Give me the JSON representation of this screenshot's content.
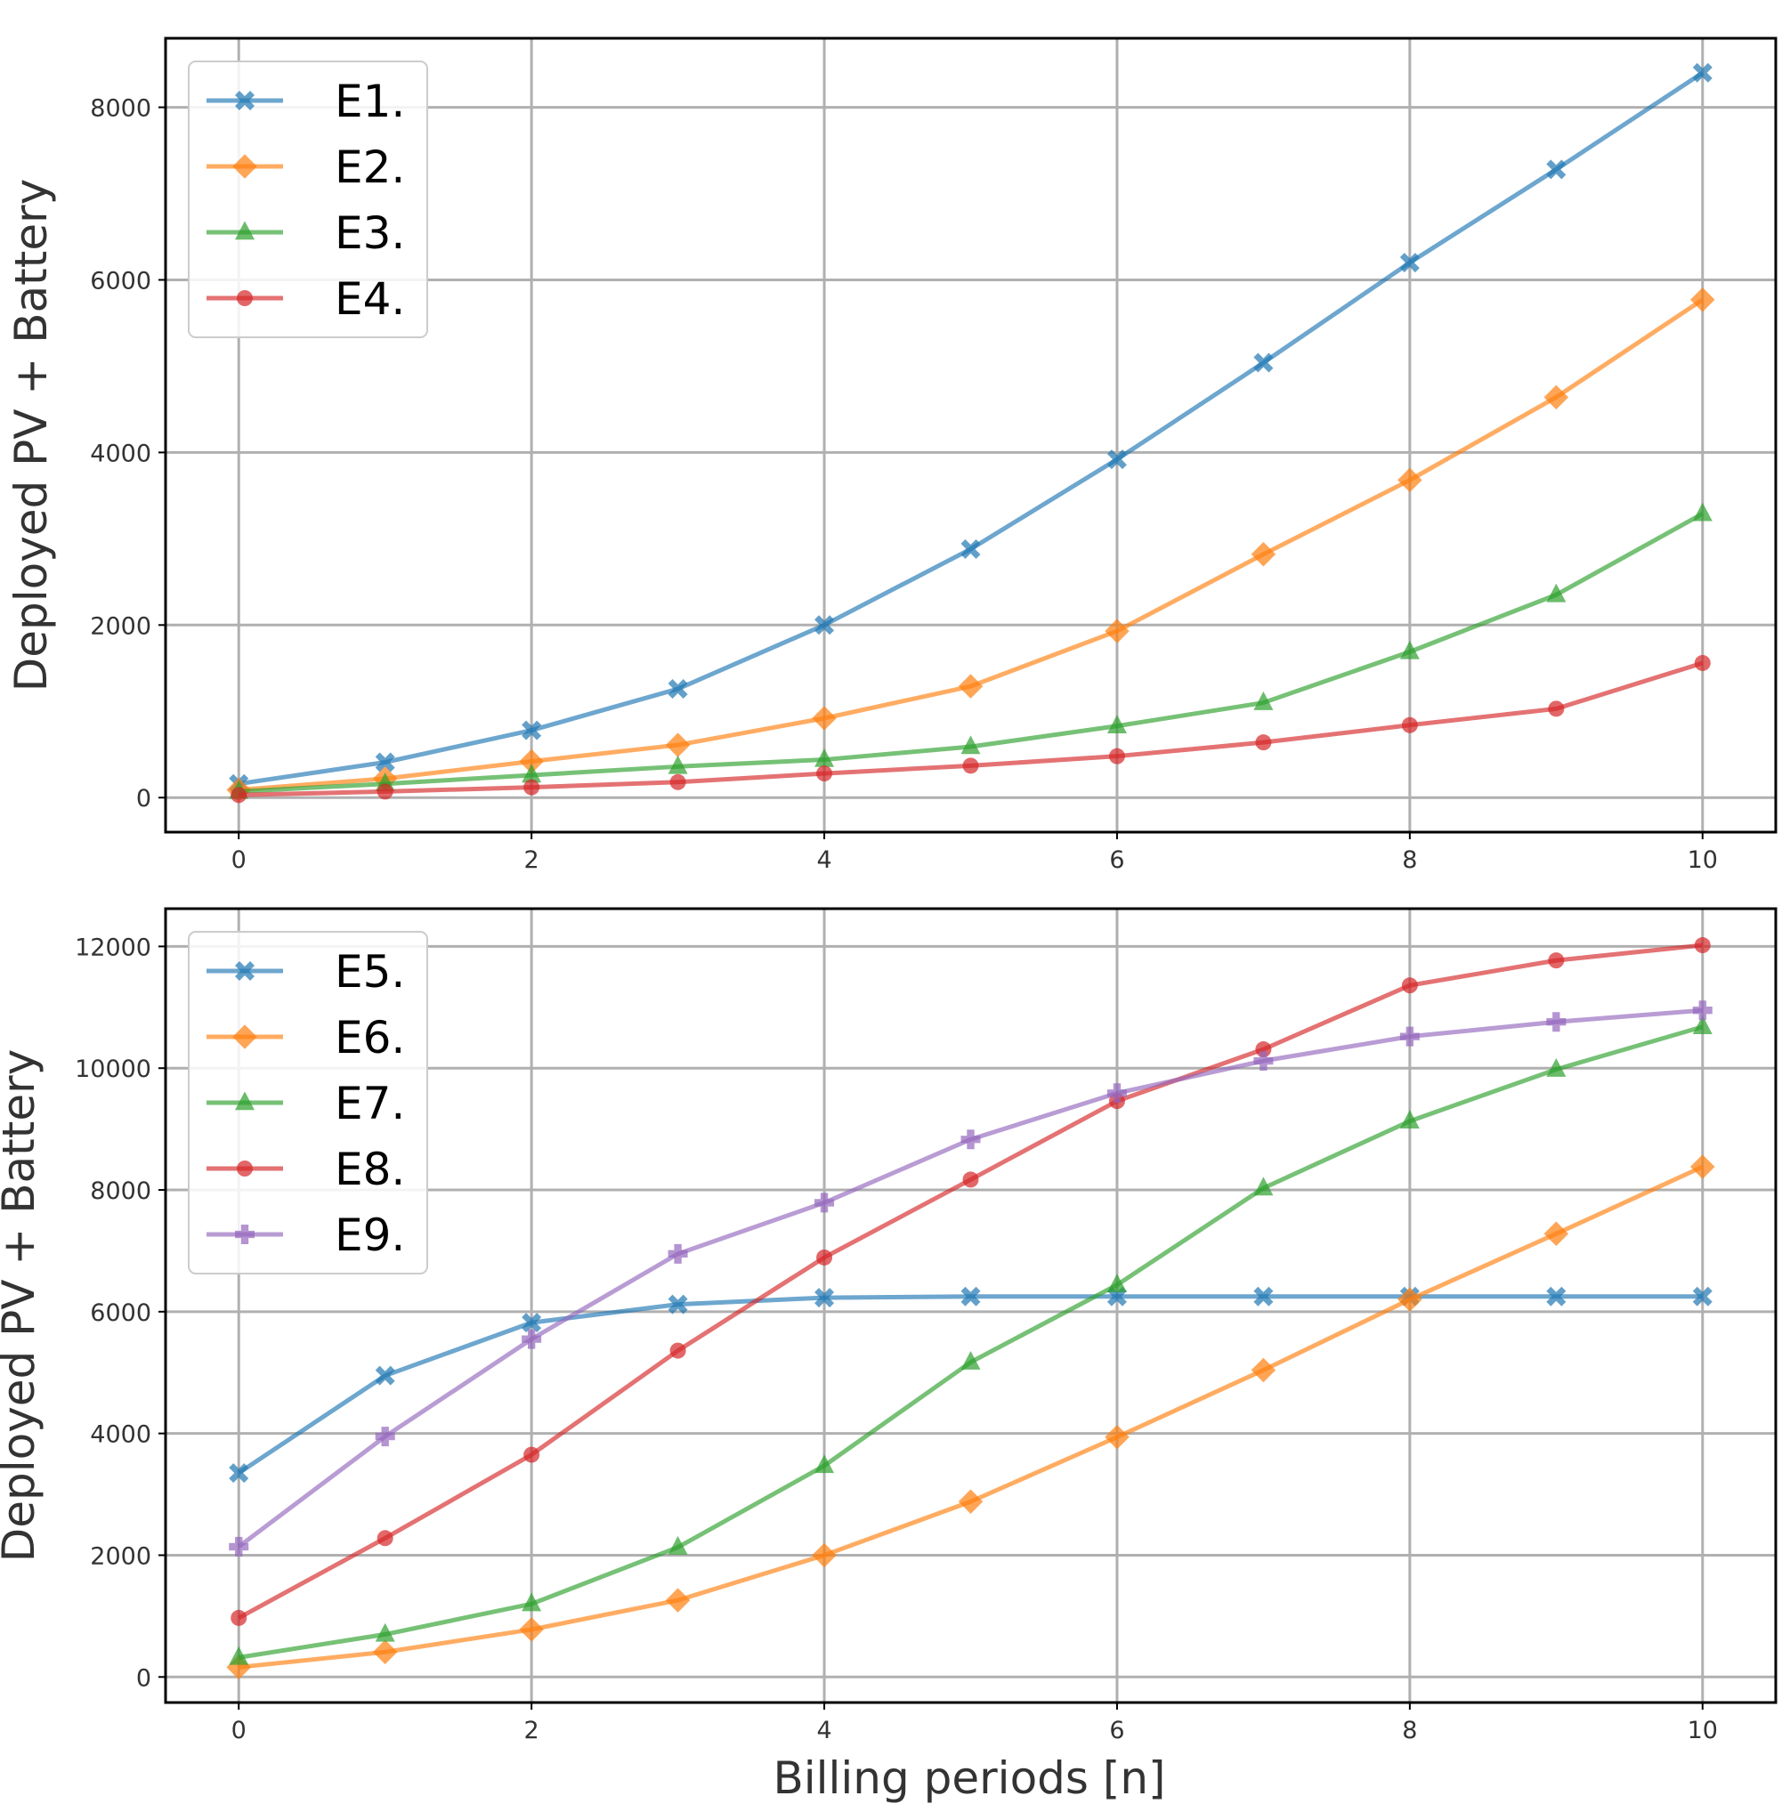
{
  "figure": {
    "xlabel": "Billing periods [n]"
  },
  "chart_data": [
    {
      "type": "line",
      "title": "",
      "xlabel": "",
      "ylabel": "Deployed PV + Battery",
      "x": [
        0,
        1,
        2,
        3,
        4,
        5,
        6,
        7,
        8,
        9,
        10
      ],
      "xlim": [
        -0.5,
        10.5
      ],
      "ylim": [
        -400,
        8800
      ],
      "xticks": [
        0,
        2,
        4,
        6,
        8,
        10
      ],
      "yticks": [
        0,
        2000,
        4000,
        6000,
        8000
      ],
      "grid": true,
      "legend_position": "top-left",
      "series": [
        {
          "name": "E1.",
          "color": "#1f77b4",
          "marker": "X",
          "values": [
            160,
            410,
            780,
            1260,
            2000,
            2880,
            3920,
            5040,
            6200,
            7280,
            8400
          ]
        },
        {
          "name": "E2.",
          "color": "#ff7f0e",
          "marker": "diamond",
          "values": [
            90,
            220,
            420,
            610,
            920,
            1290,
            1930,
            2820,
            3680,
            4640,
            5770
          ]
        },
        {
          "name": "E3.",
          "color": "#2ca02c",
          "marker": "triangle",
          "values": [
            70,
            160,
            260,
            360,
            440,
            590,
            830,
            1100,
            1690,
            2350,
            3290
          ]
        },
        {
          "name": "E4.",
          "color": "#d62728",
          "marker": "circle",
          "values": [
            30,
            70,
            120,
            180,
            280,
            370,
            480,
            640,
            840,
            1030,
            1560
          ]
        }
      ]
    },
    {
      "type": "line",
      "title": "",
      "xlabel": "Billing periods [n]",
      "ylabel": "Deployed PV + Battery",
      "x": [
        0,
        1,
        2,
        3,
        4,
        5,
        6,
        7,
        8,
        9,
        10
      ],
      "xlim": [
        -0.5,
        10.5
      ],
      "ylim": [
        -420,
        12620
      ],
      "xticks": [
        0,
        2,
        4,
        6,
        8,
        10
      ],
      "yticks": [
        0,
        2000,
        4000,
        6000,
        8000,
        10000,
        12000
      ],
      "grid": true,
      "legend_position": "top-left",
      "series": [
        {
          "name": "E5.",
          "color": "#1f77b4",
          "marker": "X",
          "values": [
            3350,
            4950,
            5820,
            6120,
            6230,
            6250,
            6250,
            6250,
            6250,
            6250,
            6250
          ]
        },
        {
          "name": "E6.",
          "color": "#ff7f0e",
          "marker": "diamond",
          "values": [
            160,
            410,
            780,
            1260,
            2000,
            2880,
            3940,
            5040,
            6200,
            7280,
            8380
          ]
        },
        {
          "name": "E7.",
          "color": "#2ca02c",
          "marker": "triangle",
          "values": [
            320,
            700,
            1200,
            2130,
            3470,
            5170,
            6440,
            8030,
            9130,
            9980,
            10680
          ]
        },
        {
          "name": "E8.",
          "color": "#d62728",
          "marker": "circle",
          "values": [
            970,
            2280,
            3650,
            5360,
            6890,
            8170,
            9460,
            10310,
            11360,
            11770,
            12020
          ]
        },
        {
          "name": "E9.",
          "color": "#9467bd",
          "marker": "plus",
          "values": [
            2140,
            3950,
            5550,
            6950,
            7790,
            8830,
            9590,
            10120,
            10520,
            10760,
            10950
          ]
        }
      ]
    }
  ]
}
